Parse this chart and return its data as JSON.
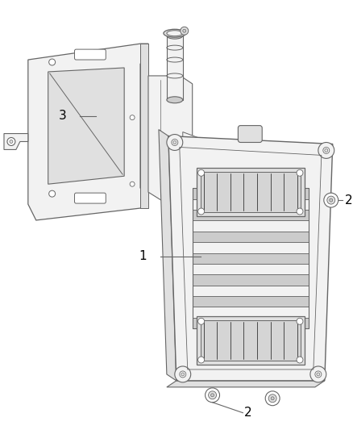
{
  "background_color": "#ffffff",
  "line_color": "#666666",
  "line_color_dark": "#333333",
  "label_color": "#000000",
  "figsize": [
    4.38,
    5.33
  ],
  "dpi": 100,
  "fill_light": "#f2f2f2",
  "fill_medium": "#e0e0e0",
  "fill_dark": "#cccccc",
  "fill_connector": "#d5d5d5"
}
